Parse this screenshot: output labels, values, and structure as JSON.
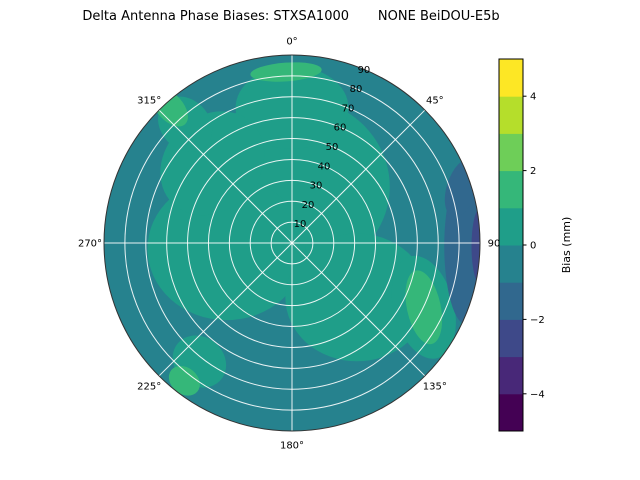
{
  "chart_data": {
    "type": "polar_contour",
    "title": "Delta Antenna Phase Biases: STXSA1000       NONE BeiDOU-E5b",
    "colormap": "viridis",
    "grid_color": "#ffffff",
    "background_color": "#ffffff",
    "radial_max": 90,
    "radial_label_azimuth_deg": 22.5,
    "angular_ticks": [
      {
        "label": "0°",
        "az": 0
      },
      {
        "label": "45°",
        "az": 45
      },
      {
        "label": "90",
        "az": 90
      },
      {
        "label": "135°",
        "az": 135
      },
      {
        "label": "180°",
        "az": 180
      },
      {
        "label": "225°",
        "az": 225
      },
      {
        "label": "270°",
        "az": 270
      },
      {
        "label": "315°",
        "az": 315
      }
    ],
    "radial_ticks": [
      {
        "label": "10",
        "value": 10
      },
      {
        "label": "20",
        "value": 20
      },
      {
        "label": "30",
        "value": 30
      },
      {
        "label": "40",
        "value": 40
      },
      {
        "label": "50",
        "value": 50
      },
      {
        "label": "60",
        "value": 60
      },
      {
        "label": "70",
        "value": 70
      },
      {
        "label": "80",
        "value": 80
      },
      {
        "label": "90",
        "value": 90
      }
    ],
    "levels_mm": [
      -5,
      -4,
      -3,
      -2,
      -1,
      0,
      1,
      2,
      3,
      4,
      5
    ],
    "band_colors": [
      "#440154",
      "#482878",
      "#3e4989",
      "#31688e",
      "#26828e",
      "#1f9e89",
      "#35b779",
      "#6ece58",
      "#b5de2b",
      "#fde725"
    ],
    "colorbar": {
      "label": "Bias (mm)",
      "range": [
        -5,
        5
      ],
      "ticks": [
        {
          "label": "−4",
          "value": -4
        },
        {
          "label": "−2",
          "value": -2
        },
        {
          "label": "0",
          "value": 0
        },
        {
          "label": "2",
          "value": 2
        },
        {
          "label": "4",
          "value": 4
        }
      ]
    },
    "regions": [
      {
        "shape": "disk",
        "band": 4,
        "bias_mm": -0.5
      },
      {
        "shape": "ellipse",
        "az": 0,
        "r": 0.3,
        "rx": 0.52,
        "ry": 0.48,
        "rot": 0,
        "band": 5,
        "bias_mm": 0.5
      },
      {
        "shape": "ellipse",
        "az": 265,
        "r": 0.35,
        "rx": 0.42,
        "ry": 0.38,
        "rot": 0,
        "band": 5,
        "bias_mm": 0.5
      },
      {
        "shape": "ellipse",
        "az": 130,
        "r": 0.45,
        "rx": 0.38,
        "ry": 0.34,
        "rot": 0,
        "band": 5,
        "bias_mm": 0.5
      },
      {
        "shape": "ellipse",
        "az": 0,
        "r": 0.72,
        "rx": 0.3,
        "ry": 0.22,
        "rot": 0,
        "band": 5,
        "bias_mm": 0.5
      },
      {
        "shape": "ellipse",
        "az": 315,
        "r": 0.6,
        "rx": 0.3,
        "ry": 0.25,
        "rot": -45,
        "band": 5,
        "bias_mm": 0.5
      },
      {
        "shape": "ellipse",
        "az": 318,
        "r": 0.85,
        "rx": 0.16,
        "ry": 0.13,
        "rot": 48,
        "band": 5,
        "bias_mm": 0.5
      },
      {
        "shape": "ellipse",
        "az": 218,
        "r": 0.8,
        "rx": 0.15,
        "ry": 0.13,
        "rot": 40,
        "band": 5,
        "bias_mm": 0.5
      },
      {
        "shape": "ellipse",
        "az": 116,
        "r": 0.78,
        "rx": 0.16,
        "ry": 0.28,
        "rot": -15,
        "band": 5,
        "bias_mm": 0.5
      },
      {
        "shape": "ellipse",
        "az": 91,
        "r": 0.93,
        "rx": 0.12,
        "ry": 0.42,
        "rot": 0,
        "band": 3,
        "bias_mm": -1.5
      },
      {
        "shape": "ellipse",
        "az": 72,
        "r": 0.95,
        "rx": 0.08,
        "ry": 0.16,
        "rot": 18,
        "band": 3,
        "bias_mm": -1.5
      },
      {
        "shape": "ellipse",
        "az": 91,
        "r": 1.0,
        "rx": 0.045,
        "ry": 0.2,
        "rot": 0,
        "band": 2,
        "bias_mm": -2.5
      },
      {
        "shape": "ellipse",
        "az": 358,
        "r": 0.91,
        "rx": 0.19,
        "ry": 0.05,
        "rot": -4,
        "band": 6,
        "bias_mm": 1.5
      },
      {
        "shape": "ellipse",
        "az": 318,
        "r": 0.97,
        "rx": 0.12,
        "ry": 0.07,
        "rot": 48,
        "band": 6,
        "bias_mm": 1.5
      },
      {
        "shape": "ellipse",
        "az": 116,
        "r": 0.78,
        "rx": 0.09,
        "ry": 0.2,
        "rot": -12,
        "band": 6,
        "bias_mm": 1.5
      },
      {
        "shape": "ellipse",
        "az": 218,
        "r": 0.93,
        "rx": 0.09,
        "ry": 0.07,
        "rot": 40,
        "band": 6,
        "bias_mm": 1.5
      }
    ]
  }
}
